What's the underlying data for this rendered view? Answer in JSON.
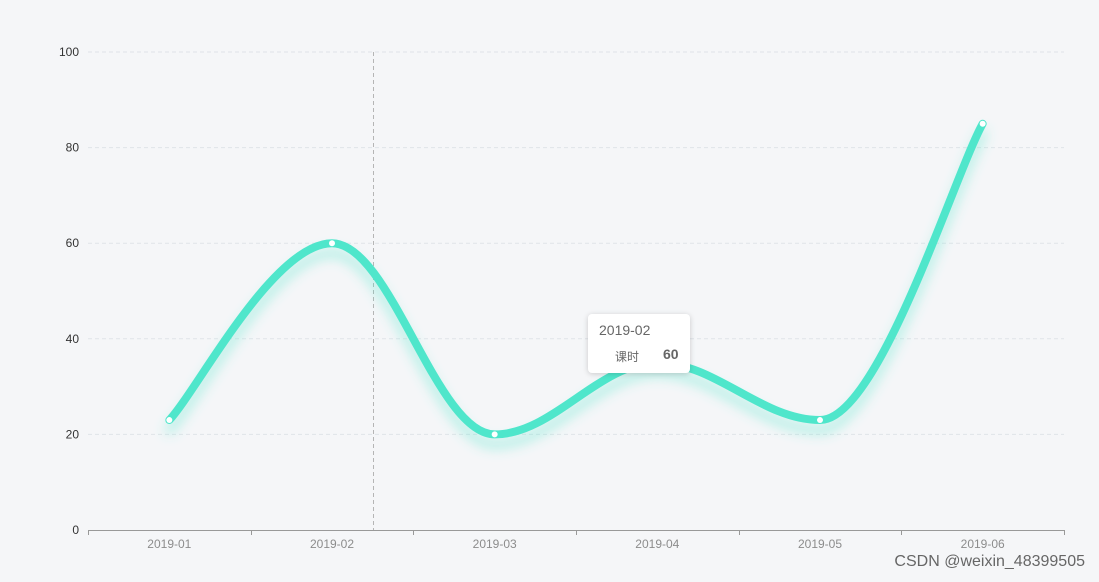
{
  "chart_data": {
    "type": "line",
    "smooth": true,
    "categories": [
      "2019-01",
      "2019-02",
      "2019-03",
      "2019-04",
      "2019-05",
      "2019-06"
    ],
    "series": [
      {
        "name": "课时",
        "values": [
          23,
          60,
          20,
          35,
          23,
          85
        ],
        "color": "#50e6cb"
      }
    ],
    "ylim": [
      0,
      100
    ],
    "yticks": [
      "0",
      "20",
      "40",
      "60",
      "80",
      "100"
    ],
    "grid": "horizontal-dashed",
    "colors": {
      "background": "#f5f6f8",
      "line": "#50e6cb",
      "grid": "#e0e3e8",
      "axis": "#999999"
    }
  },
  "tooltip": {
    "title": "2019-02",
    "series_name": "课时",
    "value": "60"
  },
  "watermark": "CSDN @weixin_48399505"
}
